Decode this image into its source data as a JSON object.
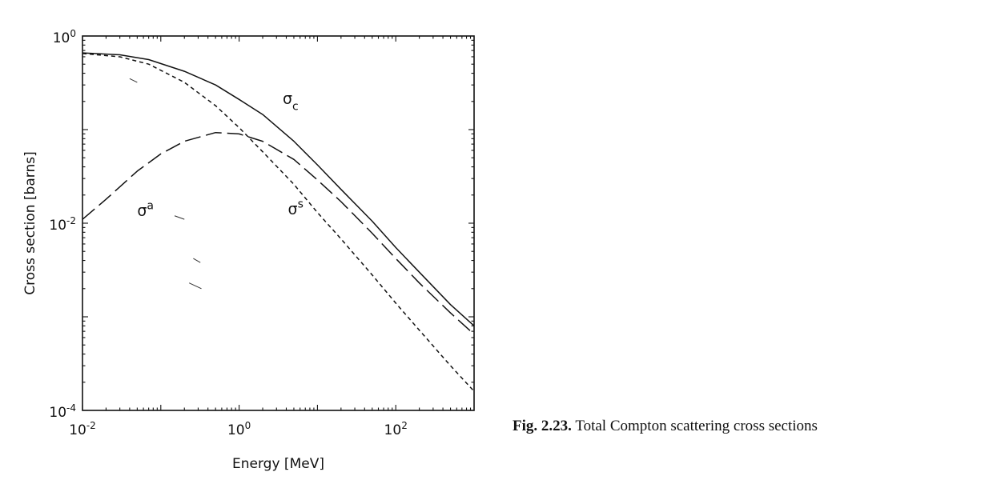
{
  "chart_data": {
    "type": "line",
    "x_scale": "log",
    "y_scale": "log",
    "xlim": [
      0.01,
      1000
    ],
    "ylim": [
      0.0001,
      1
    ],
    "xlabel": "Energy [MeV]",
    "ylabel": "Cross section [barns]",
    "x_ticks": [
      {
        "value": 0.01,
        "base": "10",
        "exp": "-2"
      },
      {
        "value": 1,
        "base": "10",
        "exp": "0"
      },
      {
        "value": 100,
        "base": "10",
        "exp": "2"
      }
    ],
    "y_ticks": [
      {
        "value": 0.0001,
        "base": "10",
        "exp": "-4"
      },
      {
        "value": 0.01,
        "base": "10",
        "exp": "-2"
      },
      {
        "value": 1,
        "base": "10",
        "exp": "0"
      }
    ],
    "grid": false,
    "legend": "none",
    "series": [
      {
        "name": "σc",
        "name_base": "σ",
        "name_script": "c",
        "script_type": "sub",
        "label_at": [
          3.6,
          0.19
        ],
        "style": "solid",
        "x": [
          0.01,
          0.03,
          0.07,
          0.2,
          0.5,
          1,
          2,
          5,
          10,
          20,
          50,
          100,
          200,
          500,
          1000
        ],
        "y": [
          0.66,
          0.63,
          0.56,
          0.42,
          0.3,
          0.21,
          0.145,
          0.075,
          0.042,
          0.023,
          0.0105,
          0.0055,
          0.003,
          0.00135,
          0.0008
        ]
      },
      {
        "name": "σs",
        "name_base": "σ",
        "name_script": "s",
        "script_type": "sup",
        "label_at": [
          4.2,
          0.0125
        ],
        "style": "short-dash",
        "x": [
          0.01,
          0.03,
          0.07,
          0.2,
          0.5,
          1,
          2,
          5,
          10,
          20,
          50,
          100,
          200,
          500,
          1000
        ],
        "y": [
          0.65,
          0.6,
          0.5,
          0.32,
          0.18,
          0.105,
          0.058,
          0.026,
          0.013,
          0.0068,
          0.0028,
          0.0014,
          0.00072,
          0.0003,
          0.00016
        ]
      },
      {
        "name": "σa",
        "name_base": "σ",
        "name_script": "a",
        "script_type": "sup",
        "label_at": [
          0.05,
          0.012
        ],
        "style": "long-dash",
        "x": [
          0.01,
          0.02,
          0.05,
          0.1,
          0.2,
          0.5,
          1,
          2,
          5,
          10,
          20,
          50,
          100,
          200,
          500,
          1000
        ],
        "y": [
          0.011,
          0.018,
          0.036,
          0.055,
          0.075,
          0.093,
          0.09,
          0.075,
          0.048,
          0.029,
          0.017,
          0.0078,
          0.0042,
          0.0023,
          0.0011,
          0.00065
        ]
      }
    ],
    "artifacts": [
      {
        "x": [
          0.04,
          0.05
        ],
        "y": [
          0.35,
          0.32
        ]
      },
      {
        "x": [
          0.15,
          0.2
        ],
        "y": [
          0.012,
          0.011
        ]
      },
      {
        "x": [
          0.26,
          0.32
        ],
        "y": [
          0.0042,
          0.0038
        ]
      },
      {
        "x": [
          0.23,
          0.33
        ],
        "y": [
          0.0023,
          0.002
        ]
      }
    ]
  },
  "caption": {
    "figure_number": "Fig. 2.23.",
    "text": "Total Compton scattering cross sections"
  }
}
